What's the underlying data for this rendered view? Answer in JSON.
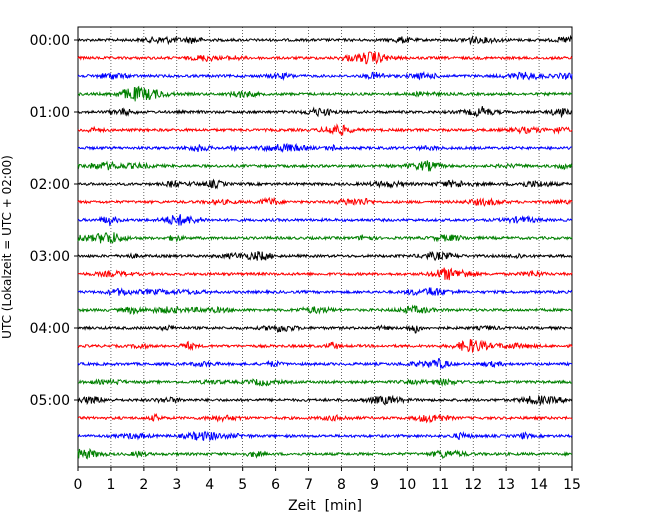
{
  "chart_data": {
    "type": "line",
    "title": "",
    "xlabel": "Zeit  [min]",
    "ylabel": "UTC (Lokalzeit = UTC + 02:00)",
    "xlim": [
      0,
      15
    ],
    "x_ticks": [
      "0",
      "1",
      "2",
      "3",
      "4",
      "5",
      "6",
      "7",
      "8",
      "9",
      "10",
      "11",
      "12",
      "13",
      "14",
      "15"
    ],
    "y_ticks": [
      "00:00",
      "01:00",
      "02:00",
      "03:00",
      "04:00",
      "05:00"
    ],
    "grid": "vertical dotted",
    "legend": "none",
    "colors": [
      "#000000",
      "#ff0000",
      "#0000ff",
      "#008000"
    ],
    "trace_start_times": [
      "00:00",
      "00:15",
      "00:30",
      "00:45",
      "01:00",
      "01:15",
      "01:30",
      "01:45",
      "02:00",
      "02:15",
      "02:30",
      "02:45",
      "03:00",
      "03:15",
      "03:30",
      "03:45",
      "04:00",
      "04:15",
      "04:30",
      "04:45",
      "05:00",
      "05:15",
      "05:30",
      "05:45"
    ],
    "trace_duration_min": 15
  }
}
